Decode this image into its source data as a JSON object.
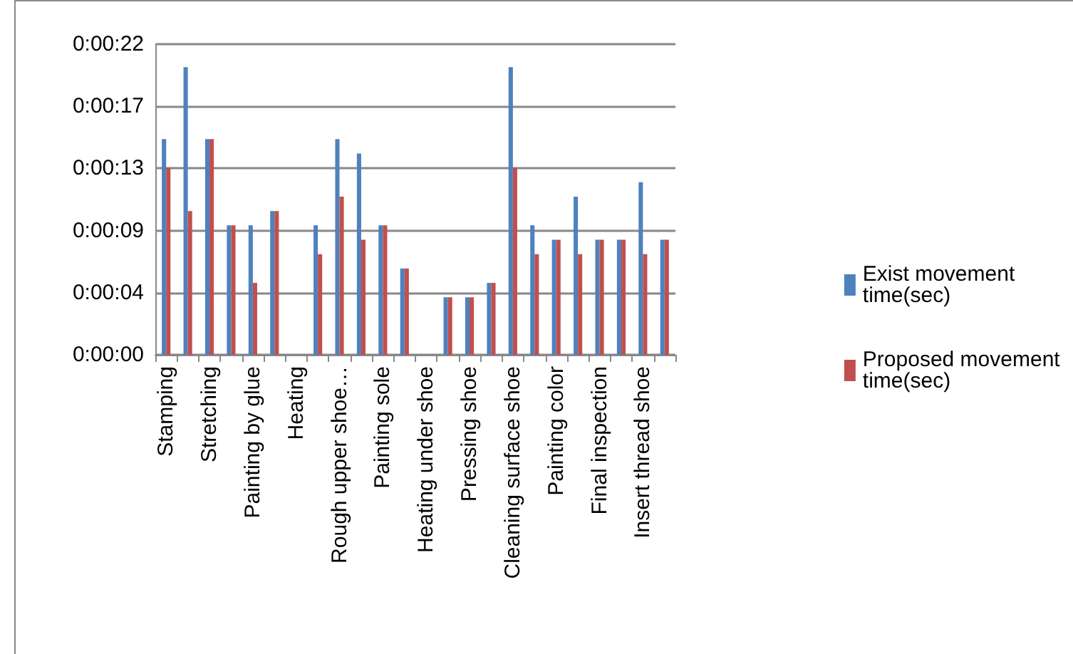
{
  "chart_data": {
    "type": "bar",
    "categories": [
      "Stamping",
      null,
      "Stretching",
      null,
      "Painting by glue",
      null,
      "Heating",
      null,
      "Rough upper shoe…",
      null,
      "Painting sole",
      null,
      "Heating under shoe",
      null,
      "Pressing shoe",
      null,
      "Cleaning surface shoe",
      null,
      "Painting color",
      null,
      "Final inspection",
      null,
      "Insert thread shoe",
      null
    ],
    "series": [
      {
        "name": "Exist movement time(sec)",
        "color": "#4f81bd",
        "values": [
          15,
          20,
          15,
          9,
          9,
          10,
          null,
          9,
          15,
          14,
          9,
          6,
          null,
          4,
          4,
          5,
          20,
          9,
          8,
          11,
          8,
          8,
          12,
          8
        ]
      },
      {
        "name": "Proposed movement time(sec)",
        "color": "#c0504d",
        "values": [
          13,
          10,
          15,
          9,
          5,
          10,
          null,
          7,
          11,
          8,
          9,
          6,
          null,
          4,
          4,
          5,
          13,
          7,
          8,
          7,
          8,
          8,
          7,
          8
        ]
      }
    ],
    "ylim": [
      0,
      21.6
    ],
    "yticks": [
      {
        "value": 0,
        "label": "0:00:00"
      },
      {
        "value": 4.32,
        "label": "0:00:04"
      },
      {
        "value": 8.64,
        "label": "0:00:09"
      },
      {
        "value": 12.96,
        "label": "0:00:13"
      },
      {
        "value": 17.28,
        "label": "0:00:17"
      },
      {
        "value": 21.6,
        "label": "0:00:22"
      }
    ],
    "grid": "y",
    "legend": "right"
  }
}
